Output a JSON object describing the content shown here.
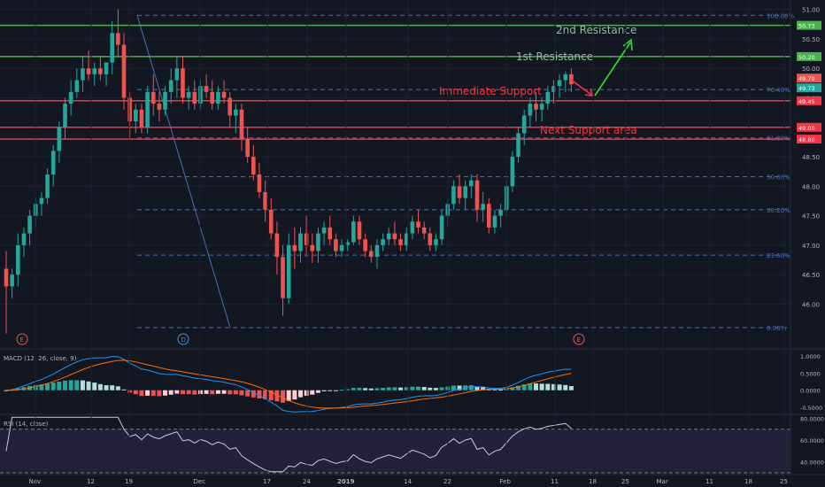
{
  "chart_data": {
    "type": "candlestick",
    "main": {
      "ylim": [
        45.3,
        51.1
      ],
      "y_ticks": [
        46.0,
        46.5,
        47.0,
        47.5,
        48.0,
        48.5,
        49.0,
        49.5,
        50.0,
        50.5,
        51.0
      ],
      "candles": [
        [
          46.6,
          46.9,
          45.5,
          46.3
        ],
        [
          46.3,
          46.6,
          46.1,
          46.5
        ],
        [
          46.5,
          47.2,
          46.3,
          47.0
        ],
        [
          47.0,
          47.3,
          46.8,
          47.2
        ],
        [
          47.2,
          47.6,
          47.0,
          47.5
        ],
        [
          47.5,
          47.8,
          47.3,
          47.7
        ],
        [
          47.7,
          47.9,
          47.5,
          47.8
        ],
        [
          47.8,
          48.3,
          47.7,
          48.2
        ],
        [
          48.2,
          48.7,
          48.0,
          48.6
        ],
        [
          48.6,
          49.1,
          48.4,
          49.0
        ],
        [
          49.0,
          49.5,
          48.8,
          49.4
        ],
        [
          49.4,
          49.8,
          49.2,
          49.6
        ],
        [
          49.6,
          50.0,
          49.5,
          49.8
        ],
        [
          49.8,
          50.2,
          49.6,
          50.0
        ],
        [
          50.0,
          50.3,
          49.8,
          49.9
        ],
        [
          49.9,
          50.1,
          49.7,
          50.0
        ],
        [
          50.0,
          50.2,
          49.8,
          49.9
        ],
        [
          49.9,
          50.1,
          49.7,
          50.1
        ],
        [
          50.1,
          50.8,
          49.9,
          50.6
        ],
        [
          50.6,
          51.0,
          50.2,
          50.4
        ],
        [
          50.4,
          50.6,
          49.3,
          49.5
        ],
        [
          49.5,
          49.6,
          48.8,
          49.1
        ],
        [
          49.1,
          49.4,
          48.9,
          49.3
        ],
        [
          49.3,
          49.4,
          48.9,
          49.0
        ],
        [
          49.0,
          49.7,
          48.9,
          49.6
        ],
        [
          49.6,
          49.9,
          49.2,
          49.4
        ],
        [
          49.4,
          49.6,
          49.1,
          49.3
        ],
        [
          49.3,
          49.7,
          49.2,
          49.6
        ],
        [
          49.6,
          50.0,
          49.4,
          49.8
        ],
        [
          49.8,
          50.2,
          49.5,
          50.0
        ],
        [
          50.0,
          50.2,
          49.4,
          49.5
        ],
        [
          49.5,
          49.7,
          49.3,
          49.6
        ],
        [
          49.6,
          49.8,
          49.3,
          49.4
        ],
        [
          49.4,
          49.8,
          49.3,
          49.7
        ],
        [
          49.7,
          49.9,
          49.5,
          49.6
        ],
        [
          49.6,
          49.8,
          49.3,
          49.4
        ],
        [
          49.4,
          49.7,
          49.3,
          49.6
        ],
        [
          49.6,
          49.8,
          49.4,
          49.5
        ],
        [
          49.5,
          49.6,
          49.0,
          49.2
        ],
        [
          49.2,
          49.4,
          48.9,
          49.3
        ],
        [
          49.3,
          49.4,
          48.6,
          48.8
        ],
        [
          48.8,
          49.0,
          48.4,
          48.5
        ],
        [
          48.5,
          48.7,
          48.1,
          48.2
        ],
        [
          48.2,
          48.4,
          47.8,
          47.9
        ],
        [
          47.9,
          48.1,
          47.4,
          47.6
        ],
        [
          47.6,
          47.8,
          47.1,
          47.2
        ],
        [
          47.2,
          47.4,
          46.5,
          46.8
        ],
        [
          46.8,
          47.0,
          45.8,
          46.1
        ],
        [
          46.1,
          47.2,
          46.0,
          47.0
        ],
        [
          47.0,
          47.3,
          46.6,
          46.9
        ],
        [
          46.9,
          47.3,
          46.7,
          47.2
        ],
        [
          47.2,
          47.5,
          46.8,
          47.0
        ],
        [
          47.0,
          47.2,
          46.7,
          46.9
        ],
        [
          46.9,
          47.3,
          46.7,
          47.2
        ],
        [
          47.2,
          47.4,
          47.0,
          47.3
        ],
        [
          47.3,
          47.5,
          47.0,
          47.1
        ],
        [
          47.1,
          47.2,
          46.8,
          46.9
        ],
        [
          46.9,
          47.1,
          46.8,
          47.0
        ],
        [
          47.0,
          47.1,
          46.9,
          47.05
        ],
        [
          47.05,
          47.5,
          47.0,
          47.4
        ],
        [
          47.4,
          47.5,
          47.0,
          47.1
        ],
        [
          47.1,
          47.2,
          46.8,
          46.9
        ],
        [
          46.9,
          47.0,
          46.7,
          46.8
        ],
        [
          46.8,
          47.1,
          46.6,
          47.0
        ],
        [
          47.0,
          47.2,
          46.9,
          47.1
        ],
        [
          47.1,
          47.3,
          47.0,
          47.2
        ],
        [
          47.2,
          47.4,
          47.0,
          47.1
        ],
        [
          47.1,
          47.2,
          46.9,
          47.0
        ],
        [
          47.0,
          47.3,
          46.9,
          47.2
        ],
        [
          47.2,
          47.5,
          47.1,
          47.4
        ],
        [
          47.4,
          47.6,
          47.2,
          47.3
        ],
        [
          47.3,
          47.4,
          47.1,
          47.2
        ],
        [
          47.2,
          47.3,
          46.9,
          47.0
        ],
        [
          47.0,
          47.2,
          46.9,
          47.1
        ],
        [
          47.1,
          47.6,
          47.0,
          47.5
        ],
        [
          47.5,
          47.8,
          47.3,
          47.7
        ],
        [
          47.7,
          48.1,
          47.6,
          48.0
        ],
        [
          48.0,
          48.2,
          47.7,
          47.8
        ],
        [
          47.8,
          48.1,
          47.6,
          48.0
        ],
        [
          48.0,
          48.2,
          47.8,
          48.1
        ],
        [
          48.1,
          48.2,
          47.4,
          47.6
        ],
        [
          47.6,
          47.9,
          47.4,
          47.7
        ],
        [
          47.7,
          47.8,
          47.2,
          47.3
        ],
        [
          47.3,
          47.6,
          47.2,
          47.5
        ],
        [
          47.5,
          47.7,
          47.3,
          47.6
        ],
        [
          47.6,
          48.1,
          47.5,
          48.0
        ],
        [
          48.0,
          48.6,
          47.9,
          48.5
        ],
        [
          48.5,
          49.0,
          48.4,
          48.9
        ],
        [
          48.9,
          49.3,
          48.7,
          49.2
        ],
        [
          49.2,
          49.5,
          49.0,
          49.4
        ],
        [
          49.4,
          49.6,
          49.1,
          49.3
        ],
        [
          49.3,
          49.5,
          49.1,
          49.4
        ],
        [
          49.4,
          49.7,
          49.3,
          49.6
        ],
        [
          49.6,
          49.8,
          49.4,
          49.7
        ],
        [
          49.7,
          49.9,
          49.5,
          49.8
        ],
        [
          49.8,
          49.95,
          49.6,
          49.9
        ],
        [
          49.9,
          50.0,
          49.6,
          49.73
        ]
      ],
      "fib_levels": [
        {
          "label": "100.00%",
          "price": 50.9
        },
        {
          "label": "76.40%",
          "price": 49.64
        },
        {
          "label": "61.80%",
          "price": 48.82
        },
        {
          "label": "50.00%",
          "price": 48.16
        },
        {
          "label": "38.20%",
          "price": 47.6
        },
        {
          "label": "23.60%",
          "price": 46.83
        },
        {
          "label": "0.00%",
          "price": 45.6
        }
      ],
      "hlines": [
        {
          "price": 50.73,
          "color": "#4caf50",
          "tag": "50.73"
        },
        {
          "price": 50.2,
          "color": "#4caf50",
          "tag": "50.20"
        },
        {
          "price": 49.45,
          "color": "#f23645",
          "tag": "49.45"
        },
        {
          "price": 49.0,
          "color": "#f23645",
          "tag": "49.00"
        },
        {
          "price": 48.8,
          "color": "#f23645",
          "tag": "48.80"
        }
      ],
      "price_tags": [
        {
          "price": 49.79,
          "text": "49.79",
          "color": "#ef5350"
        },
        {
          "price": 49.73,
          "text": "49.73",
          "color": "#26a69a"
        }
      ],
      "annotations": [
        {
          "text": "2nd Resistance",
          "color": "#8fbf9a"
        },
        {
          "text": "1st Resistance",
          "color": "#8fbf9a"
        },
        {
          "text": "Immediate Support",
          "color": "#f23645"
        },
        {
          "text": "Next Support area",
          "color": "#f23645"
        }
      ],
      "event_markers": [
        "E",
        "D",
        "E"
      ]
    },
    "macd": {
      "label": "MACD (12, 26, close, 9)",
      "ylim": [
        -0.65,
        1.15
      ],
      "y_ticks": [
        1.0,
        0.5,
        0.0,
        -0.5
      ],
      "y_tick_labels": [
        "1.0000",
        "0.5000",
        "0.0000",
        "-0.5000"
      ]
    },
    "rsi": {
      "label": "RSI (14, close)",
      "ylim": [
        30,
        82
      ],
      "y_ticks": [
        80,
        60,
        40
      ],
      "y_tick_labels": [
        "80.0000",
        "60.0000",
        "40.0000"
      ],
      "bands": [
        70,
        30
      ]
    },
    "x_ticks": [
      "Nov",
      "12",
      "19",
      "Dec",
      "17",
      "24",
      "2019",
      "14",
      "22",
      "Feb",
      "11",
      "18",
      "25",
      "Mar",
      "11",
      "18",
      "25"
    ],
    "colors": {
      "up": "#26a69a",
      "down": "#ef5350",
      "background": "#131722",
      "grid": "#1e2230",
      "text": "#b2b5be"
    }
  }
}
